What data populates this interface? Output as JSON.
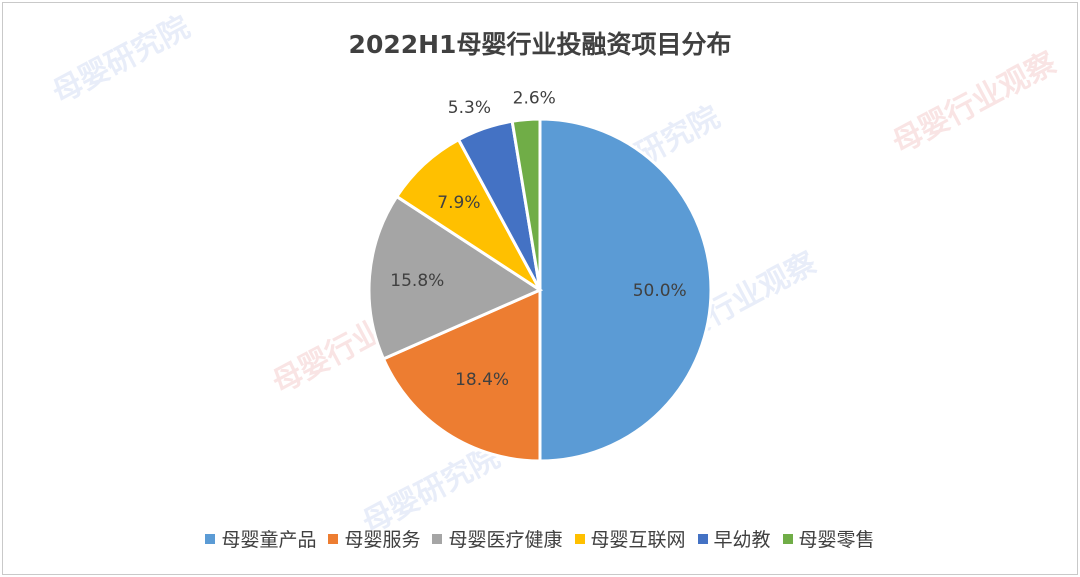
{
  "chart_data": {
    "type": "pie",
    "title": "2022H1母婴行业投融资项目分布",
    "legend_position": "bottom",
    "slices": [
      {
        "label": "母婴童产品",
        "value": 50.0,
        "value_label": "50.0%",
        "color": "#5B9BD5"
      },
      {
        "label": "母婴服务",
        "value": 18.4,
        "value_label": "18.4%",
        "color": "#ED7D31"
      },
      {
        "label": "母婴医疗健康",
        "value": 15.8,
        "value_label": "15.8%",
        "color": "#A5A5A5"
      },
      {
        "label": "母婴互联网",
        "value": 7.9,
        "value_label": "7.9%",
        "color": "#FFC000"
      },
      {
        "label": "早幼教",
        "value": 5.3,
        "value_label": "5.3%",
        "color": "#4472C4"
      },
      {
        "label": "母婴零售",
        "value": 2.6,
        "value_label": "2.6%",
        "color": "#70AD47"
      }
    ]
  },
  "watermarks": [
    "母婴研究院",
    "母婴行业观察",
    "母婴研究院",
    "母婴行业观察",
    "母婴研究院",
    "母婴行业观察"
  ]
}
